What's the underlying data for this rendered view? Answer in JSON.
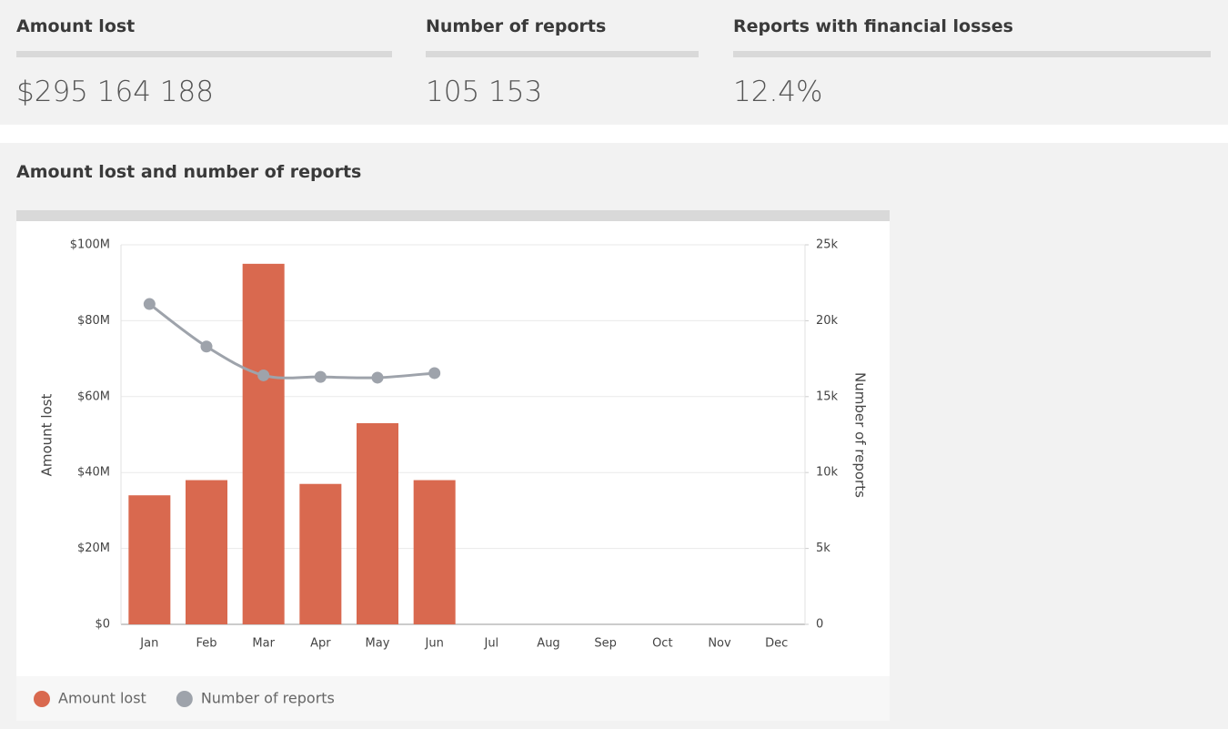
{
  "stats": [
    {
      "label": "Amount lost",
      "value": "$295 164 188"
    },
    {
      "label": "Number of reports",
      "value": "105 153"
    },
    {
      "label": "Reports with financial losses",
      "value": "12.4%"
    }
  ],
  "chart_data": {
    "type": "bar-line",
    "title": "Amount lost and number of reports",
    "categories": [
      "Jan",
      "Feb",
      "Mar",
      "Apr",
      "May",
      "Jun",
      "Jul",
      "Aug",
      "Sep",
      "Oct",
      "Nov",
      "Dec"
    ],
    "series": [
      {
        "name": "Amount lost",
        "type": "bar",
        "color": "#d9694f",
        "values": [
          34000000,
          38000000,
          95000000,
          37000000,
          53000000,
          38000000,
          null,
          null,
          null,
          null,
          null,
          null
        ]
      },
      {
        "name": "Number of reports",
        "type": "line",
        "axis": "y2",
        "color": "#9ea3ab",
        "values": [
          21100,
          18300,
          16400,
          16300,
          16250,
          16550,
          null,
          null,
          null,
          null,
          null,
          null
        ]
      }
    ],
    "ylabel": "Amount lost",
    "y2label": "Number of reports",
    "ylim": [
      0,
      100000000
    ],
    "yticks": [
      {
        "value": 0,
        "label": "$0"
      },
      {
        "value": 20000000,
        "label": "$20M"
      },
      {
        "value": 40000000,
        "label": "$40M"
      },
      {
        "value": 60000000,
        "label": "$60M"
      },
      {
        "value": 80000000,
        "label": "$80M"
      },
      {
        "value": 100000000,
        "label": "$100M"
      }
    ],
    "y2lim": [
      0,
      25000
    ],
    "y2ticks": [
      0,
      {
        "value": 5000,
        "label": "5k"
      },
      {
        "value": 10000,
        "label": "10k"
      },
      {
        "value": 15000,
        "label": "15k"
      },
      {
        "value": 20000,
        "label": "20k"
      },
      {
        "value": 25000,
        "label": "25k"
      }
    ],
    "grid": true,
    "legend": "bottom-left"
  }
}
